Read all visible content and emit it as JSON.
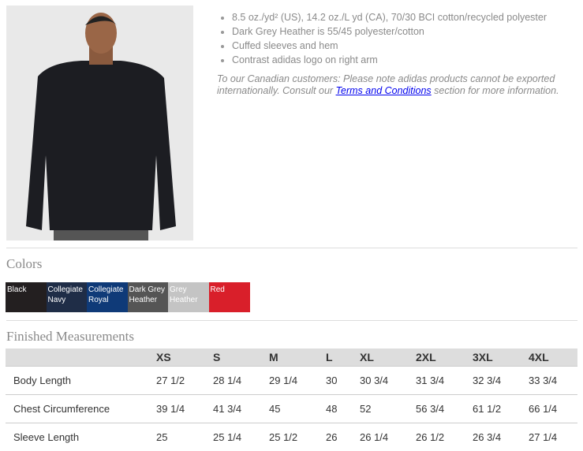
{
  "product": {
    "features": [
      "8.5 oz./yd² (US), 14.2 oz./L yd (CA), 70/30 BCI cotton/recycled polyester",
      "Dark Grey Heather is 55/45 polyester/cotton",
      "Cuffed sleeves and hem",
      "Contrast adidas logo on right arm"
    ],
    "note_before": "To our Canadian customers: Please note adidas products cannot be exported internationally. Consult our ",
    "note_link": "Terms and Conditions",
    "note_after": " section for more information."
  },
  "colors": {
    "heading": "Colors",
    "swatches": [
      {
        "name": "Black",
        "hex": "#231f20"
      },
      {
        "name": "Collegiate Navy",
        "hex": "#1f2d47"
      },
      {
        "name": "Collegiate Royal",
        "hex": "#0f3a78"
      },
      {
        "name": "Dark Grey Heather",
        "hex": "#555555"
      },
      {
        "name": "Grey Heather",
        "hex": "#c4c4c4"
      },
      {
        "name": "Red",
        "hex": "#d91f2a"
      }
    ]
  },
  "measurements": {
    "heading": "Finished Measurements",
    "sizes": [
      "XS",
      "S",
      "M",
      "L",
      "XL",
      "2XL",
      "3XL",
      "4XL"
    ],
    "rows": [
      {
        "label": "Body Length",
        "values": [
          "27 1/2",
          "28 1/4",
          "29 1/4",
          "30",
          "30 3/4",
          "31 3/4",
          "32 3/4",
          "33 3/4"
        ]
      },
      {
        "label": "Chest Circumference",
        "values": [
          "39 1/4",
          "41 3/4",
          "45",
          "48",
          "52",
          "56 3/4",
          "61 1/2",
          "66 1/4"
        ]
      },
      {
        "label": "Sleeve Length",
        "values": [
          "25",
          "25 1/4",
          "25 1/2",
          "26",
          "26 1/4",
          "26 1/2",
          "26 3/4",
          "27 1/4"
        ]
      }
    ]
  }
}
